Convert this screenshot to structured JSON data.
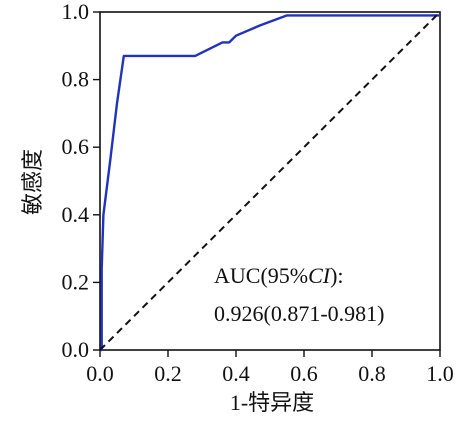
{
  "chart_data": {
    "type": "line",
    "title": "",
    "xlabel": "1-特异度",
    "ylabel": "敏感度",
    "xlim": [
      0,
      1
    ],
    "ylim": [
      0,
      1
    ],
    "grid": false,
    "x_ticks": [
      "0.0",
      "0.2",
      "0.4",
      "0.6",
      "0.8",
      "1.0"
    ],
    "y_ticks": [
      "0.0",
      "0.2",
      "0.4",
      "0.6",
      "0.8",
      "1.0"
    ],
    "series": [
      {
        "color": "#2233bb",
        "style": "solid",
        "points": [
          [
            0.0,
            0.0
          ],
          [
            0.005,
            0.0
          ],
          [
            0.005,
            0.24
          ],
          [
            0.01,
            0.4
          ],
          [
            0.03,
            0.56
          ],
          [
            0.05,
            0.73
          ],
          [
            0.07,
            0.87
          ],
          [
            0.2,
            0.87
          ],
          [
            0.28,
            0.87
          ],
          [
            0.36,
            0.91
          ],
          [
            0.38,
            0.91
          ],
          [
            0.4,
            0.93
          ],
          [
            0.47,
            0.96
          ],
          [
            0.55,
            0.99
          ],
          [
            0.6,
            0.99
          ],
          [
            0.8,
            0.99
          ],
          [
            1.0,
            0.99
          ]
        ]
      },
      {
        "color": "#111111",
        "style": "dashed",
        "points": [
          [
            0,
            0
          ],
          [
            1,
            1
          ]
        ]
      }
    ],
    "annotation": {
      "line1_prefix": "AUC(95%",
      "line1_italic": "CI",
      "line1_suffix": "):",
      "line2": "0.926(0.871-0.981)"
    }
  }
}
